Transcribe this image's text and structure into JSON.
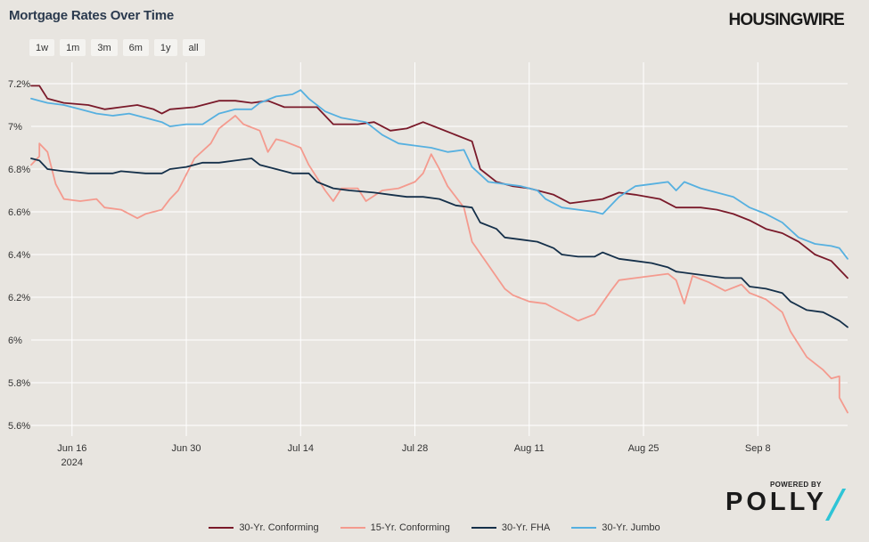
{
  "title": "Mortgage Rates Over Time",
  "brand": "HOUSINGWIRE",
  "range_buttons": [
    "1w",
    "1m",
    "3m",
    "6m",
    "1y",
    "all"
  ],
  "powered_by": "POWERED BY",
  "polly_logo": "POLLY",
  "chart_data": {
    "type": "line",
    "title": "Mortgage Rates Over Time",
    "xlabel": "",
    "ylabel": "",
    "x_range": [
      "2024-06-11",
      "2024-09-19"
    ],
    "ylim": [
      5.55,
      7.3
    ],
    "y_ticks": [
      7.2,
      7.0,
      6.8,
      6.6,
      6.4,
      6.2,
      6.0,
      5.8,
      5.6
    ],
    "y_tick_labels": [
      "7.2%",
      "7%",
      "6.8%",
      "6.6%",
      "6.4%",
      "6.2%",
      "6%",
      "5.8%",
      "5.6%"
    ],
    "x_ticks": [
      {
        "date": "2024-06-16",
        "label": "Jun 16",
        "sublabel": "2024"
      },
      {
        "date": "2024-06-30",
        "label": "Jun 30"
      },
      {
        "date": "2024-07-14",
        "label": "Jul 14"
      },
      {
        "date": "2024-07-28",
        "label": "Jul 28"
      },
      {
        "date": "2024-08-11",
        "label": "Aug 11"
      },
      {
        "date": "2024-08-25",
        "label": "Aug 25"
      },
      {
        "date": "2024-09-08",
        "label": "Sep 8"
      }
    ],
    "grid": true,
    "legend_position": "bottom",
    "series": [
      {
        "name": "30-Yr. Conforming",
        "color": "#7a1a2a",
        "points": [
          [
            "2024-06-11",
            7.19
          ],
          [
            "2024-06-12",
            7.19
          ],
          [
            "2024-06-13",
            7.13
          ],
          [
            "2024-06-15",
            7.11
          ],
          [
            "2024-06-18",
            7.1
          ],
          [
            "2024-06-20",
            7.08
          ],
          [
            "2024-06-22",
            7.09
          ],
          [
            "2024-06-24",
            7.1
          ],
          [
            "2024-06-26",
            7.08
          ],
          [
            "2024-06-27",
            7.06
          ],
          [
            "2024-06-28",
            7.08
          ],
          [
            "2024-07-01",
            7.09
          ],
          [
            "2024-07-02",
            7.1
          ],
          [
            "2024-07-04",
            7.12
          ],
          [
            "2024-07-06",
            7.12
          ],
          [
            "2024-07-08",
            7.11
          ],
          [
            "2024-07-10",
            7.12
          ],
          [
            "2024-07-12",
            7.09
          ],
          [
            "2024-07-14",
            7.09
          ],
          [
            "2024-07-16",
            7.09
          ],
          [
            "2024-07-18",
            7.01
          ],
          [
            "2024-07-21",
            7.01
          ],
          [
            "2024-07-23",
            7.02
          ],
          [
            "2024-07-25",
            6.98
          ],
          [
            "2024-07-27",
            6.99
          ],
          [
            "2024-07-29",
            7.02
          ],
          [
            "2024-07-31",
            6.99
          ],
          [
            "2024-08-02",
            6.96
          ],
          [
            "2024-08-04",
            6.93
          ],
          [
            "2024-08-05",
            6.8
          ],
          [
            "2024-08-07",
            6.74
          ],
          [
            "2024-08-09",
            6.72
          ],
          [
            "2024-08-11",
            6.71
          ],
          [
            "2024-08-14",
            6.68
          ],
          [
            "2024-08-16",
            6.64
          ],
          [
            "2024-08-18",
            6.65
          ],
          [
            "2024-08-20",
            6.66
          ],
          [
            "2024-08-22",
            6.69
          ],
          [
            "2024-08-24",
            6.68
          ],
          [
            "2024-08-27",
            6.66
          ],
          [
            "2024-08-29",
            6.62
          ],
          [
            "2024-09-01",
            6.62
          ],
          [
            "2024-09-03",
            6.61
          ],
          [
            "2024-09-05",
            6.59
          ],
          [
            "2024-09-07",
            6.56
          ],
          [
            "2024-09-09",
            6.52
          ],
          [
            "2024-09-11",
            6.5
          ],
          [
            "2024-09-13",
            6.46
          ],
          [
            "2024-09-15",
            6.4
          ],
          [
            "2024-09-17",
            6.37
          ],
          [
            "2024-09-18",
            6.33
          ],
          [
            "2024-09-19",
            6.29
          ]
        ]
      },
      {
        "name": "15-Yr. Conforming",
        "color": "#f49a8e",
        "points": [
          [
            "2024-06-11",
            6.82
          ],
          [
            "2024-06-12",
            6.86
          ],
          [
            "2024-06-12",
            6.92
          ],
          [
            "2024-06-13",
            6.88
          ],
          [
            "2024-06-14",
            6.73
          ],
          [
            "2024-06-15",
            6.66
          ],
          [
            "2024-06-17",
            6.65
          ],
          [
            "2024-06-19",
            6.66
          ],
          [
            "2024-06-20",
            6.62
          ],
          [
            "2024-06-22",
            6.61
          ],
          [
            "2024-06-24",
            6.57
          ],
          [
            "2024-06-25",
            6.59
          ],
          [
            "2024-06-27",
            6.61
          ],
          [
            "2024-06-28",
            6.66
          ],
          [
            "2024-06-29",
            6.7
          ],
          [
            "2024-07-01",
            6.85
          ],
          [
            "2024-07-03",
            6.92
          ],
          [
            "2024-07-04",
            6.99
          ],
          [
            "2024-07-06",
            7.05
          ],
          [
            "2024-07-07",
            7.01
          ],
          [
            "2024-07-09",
            6.98
          ],
          [
            "2024-07-10",
            6.88
          ],
          [
            "2024-07-11",
            6.94
          ],
          [
            "2024-07-12",
            6.93
          ],
          [
            "2024-07-14",
            6.9
          ],
          [
            "2024-07-15",
            6.82
          ],
          [
            "2024-07-17",
            6.7
          ],
          [
            "2024-07-18",
            6.65
          ],
          [
            "2024-07-19",
            6.71
          ],
          [
            "2024-07-21",
            6.71
          ],
          [
            "2024-07-22",
            6.65
          ],
          [
            "2024-07-24",
            6.7
          ],
          [
            "2024-07-26",
            6.71
          ],
          [
            "2024-07-28",
            6.74
          ],
          [
            "2024-07-29",
            6.78
          ],
          [
            "2024-07-30",
            6.87
          ],
          [
            "2024-07-31",
            6.8
          ],
          [
            "2024-08-01",
            6.72
          ],
          [
            "2024-08-03",
            6.62
          ],
          [
            "2024-08-04",
            6.46
          ],
          [
            "2024-08-06",
            6.35
          ],
          [
            "2024-08-08",
            6.24
          ],
          [
            "2024-08-09",
            6.21
          ],
          [
            "2024-08-11",
            6.18
          ],
          [
            "2024-08-13",
            6.17
          ],
          [
            "2024-08-14",
            6.15
          ],
          [
            "2024-08-16",
            6.11
          ],
          [
            "2024-08-17",
            6.09
          ],
          [
            "2024-08-19",
            6.12
          ],
          [
            "2024-08-21",
            6.23
          ],
          [
            "2024-08-22",
            6.28
          ],
          [
            "2024-08-24",
            6.29
          ],
          [
            "2024-08-26",
            6.3
          ],
          [
            "2024-08-28",
            6.31
          ],
          [
            "2024-08-29",
            6.28
          ],
          [
            "2024-08-30",
            6.17
          ],
          [
            "2024-08-31",
            6.3
          ],
          [
            "2024-09-02",
            6.27
          ],
          [
            "2024-09-04",
            6.23
          ],
          [
            "2024-09-06",
            6.26
          ],
          [
            "2024-09-07",
            6.22
          ],
          [
            "2024-09-09",
            6.19
          ],
          [
            "2024-09-11",
            6.13
          ],
          [
            "2024-09-12",
            6.04
          ],
          [
            "2024-09-14",
            5.92
          ],
          [
            "2024-09-15",
            5.89
          ],
          [
            "2024-09-16",
            5.86
          ],
          [
            "2024-09-17",
            5.82
          ],
          [
            "2024-09-18",
            5.83
          ],
          [
            "2024-09-18",
            5.73
          ],
          [
            "2024-09-19",
            5.66
          ]
        ]
      },
      {
        "name": "30-Yr. FHA",
        "color": "#15304a",
        "points": [
          [
            "2024-06-11",
            6.85
          ],
          [
            "2024-06-12",
            6.84
          ],
          [
            "2024-06-13",
            6.8
          ],
          [
            "2024-06-15",
            6.79
          ],
          [
            "2024-06-18",
            6.78
          ],
          [
            "2024-06-21",
            6.78
          ],
          [
            "2024-06-22",
            6.79
          ],
          [
            "2024-06-25",
            6.78
          ],
          [
            "2024-06-27",
            6.78
          ],
          [
            "2024-06-28",
            6.8
          ],
          [
            "2024-06-30",
            6.81
          ],
          [
            "2024-07-02",
            6.83
          ],
          [
            "2024-07-04",
            6.83
          ],
          [
            "2024-07-06",
            6.84
          ],
          [
            "2024-07-08",
            6.85
          ],
          [
            "2024-07-09",
            6.82
          ],
          [
            "2024-07-11",
            6.8
          ],
          [
            "2024-07-13",
            6.78
          ],
          [
            "2024-07-15",
            6.78
          ],
          [
            "2024-07-16",
            6.74
          ],
          [
            "2024-07-18",
            6.71
          ],
          [
            "2024-07-20",
            6.7
          ],
          [
            "2024-07-23",
            6.69
          ],
          [
            "2024-07-25",
            6.68
          ],
          [
            "2024-07-27",
            6.67
          ],
          [
            "2024-07-29",
            6.67
          ],
          [
            "2024-07-31",
            6.66
          ],
          [
            "2024-08-02",
            6.63
          ],
          [
            "2024-08-04",
            6.62
          ],
          [
            "2024-08-05",
            6.55
          ],
          [
            "2024-08-07",
            6.52
          ],
          [
            "2024-08-08",
            6.48
          ],
          [
            "2024-08-10",
            6.47
          ],
          [
            "2024-08-12",
            6.46
          ],
          [
            "2024-08-14",
            6.43
          ],
          [
            "2024-08-15",
            6.4
          ],
          [
            "2024-08-17",
            6.39
          ],
          [
            "2024-08-19",
            6.39
          ],
          [
            "2024-08-20",
            6.41
          ],
          [
            "2024-08-22",
            6.38
          ],
          [
            "2024-08-24",
            6.37
          ],
          [
            "2024-08-26",
            6.36
          ],
          [
            "2024-08-28",
            6.34
          ],
          [
            "2024-08-29",
            6.32
          ],
          [
            "2024-08-31",
            6.31
          ],
          [
            "2024-09-02",
            6.3
          ],
          [
            "2024-09-04",
            6.29
          ],
          [
            "2024-09-06",
            6.29
          ],
          [
            "2024-09-07",
            6.25
          ],
          [
            "2024-09-09",
            6.24
          ],
          [
            "2024-09-11",
            6.22
          ],
          [
            "2024-09-12",
            6.18
          ],
          [
            "2024-09-14",
            6.14
          ],
          [
            "2024-09-16",
            6.13
          ],
          [
            "2024-09-17",
            6.11
          ],
          [
            "2024-09-18",
            6.09
          ],
          [
            "2024-09-19",
            6.06
          ]
        ]
      },
      {
        "name": "30-Yr. Jumbo",
        "color": "#56b0e0",
        "points": [
          [
            "2024-06-11",
            7.13
          ],
          [
            "2024-06-12",
            7.12
          ],
          [
            "2024-06-13",
            7.11
          ],
          [
            "2024-06-15",
            7.1
          ],
          [
            "2024-06-17",
            7.08
          ],
          [
            "2024-06-19",
            7.06
          ],
          [
            "2024-06-21",
            7.05
          ],
          [
            "2024-06-23",
            7.06
          ],
          [
            "2024-06-25",
            7.04
          ],
          [
            "2024-06-27",
            7.02
          ],
          [
            "2024-06-28",
            7.0
          ],
          [
            "2024-06-30",
            7.01
          ],
          [
            "2024-07-02",
            7.01
          ],
          [
            "2024-07-04",
            7.06
          ],
          [
            "2024-07-06",
            7.08
          ],
          [
            "2024-07-08",
            7.08
          ],
          [
            "2024-07-09",
            7.11
          ],
          [
            "2024-07-11",
            7.14
          ],
          [
            "2024-07-13",
            7.15
          ],
          [
            "2024-07-14",
            7.17
          ],
          [
            "2024-07-15",
            7.13
          ],
          [
            "2024-07-17",
            7.07
          ],
          [
            "2024-07-19",
            7.04
          ],
          [
            "2024-07-22",
            7.02
          ],
          [
            "2024-07-24",
            6.96
          ],
          [
            "2024-07-26",
            6.92
          ],
          [
            "2024-07-28",
            6.91
          ],
          [
            "2024-07-30",
            6.9
          ],
          [
            "2024-08-01",
            6.88
          ],
          [
            "2024-08-03",
            6.89
          ],
          [
            "2024-08-04",
            6.81
          ],
          [
            "2024-08-06",
            6.74
          ],
          [
            "2024-08-08",
            6.73
          ],
          [
            "2024-08-10",
            6.72
          ],
          [
            "2024-08-12",
            6.7
          ],
          [
            "2024-08-13",
            6.66
          ],
          [
            "2024-08-15",
            6.62
          ],
          [
            "2024-08-17",
            6.61
          ],
          [
            "2024-08-19",
            6.6
          ],
          [
            "2024-08-20",
            6.59
          ],
          [
            "2024-08-22",
            6.67
          ],
          [
            "2024-08-24",
            6.72
          ],
          [
            "2024-08-26",
            6.73
          ],
          [
            "2024-08-28",
            6.74
          ],
          [
            "2024-08-29",
            6.7
          ],
          [
            "2024-08-30",
            6.74
          ],
          [
            "2024-09-01",
            6.71
          ],
          [
            "2024-09-03",
            6.69
          ],
          [
            "2024-09-05",
            6.67
          ],
          [
            "2024-09-07",
            6.62
          ],
          [
            "2024-09-09",
            6.59
          ],
          [
            "2024-09-11",
            6.55
          ],
          [
            "2024-09-13",
            6.48
          ],
          [
            "2024-09-15",
            6.45
          ],
          [
            "2024-09-17",
            6.44
          ],
          [
            "2024-09-18",
            6.43
          ],
          [
            "2024-09-19",
            6.38
          ]
        ]
      }
    ]
  }
}
